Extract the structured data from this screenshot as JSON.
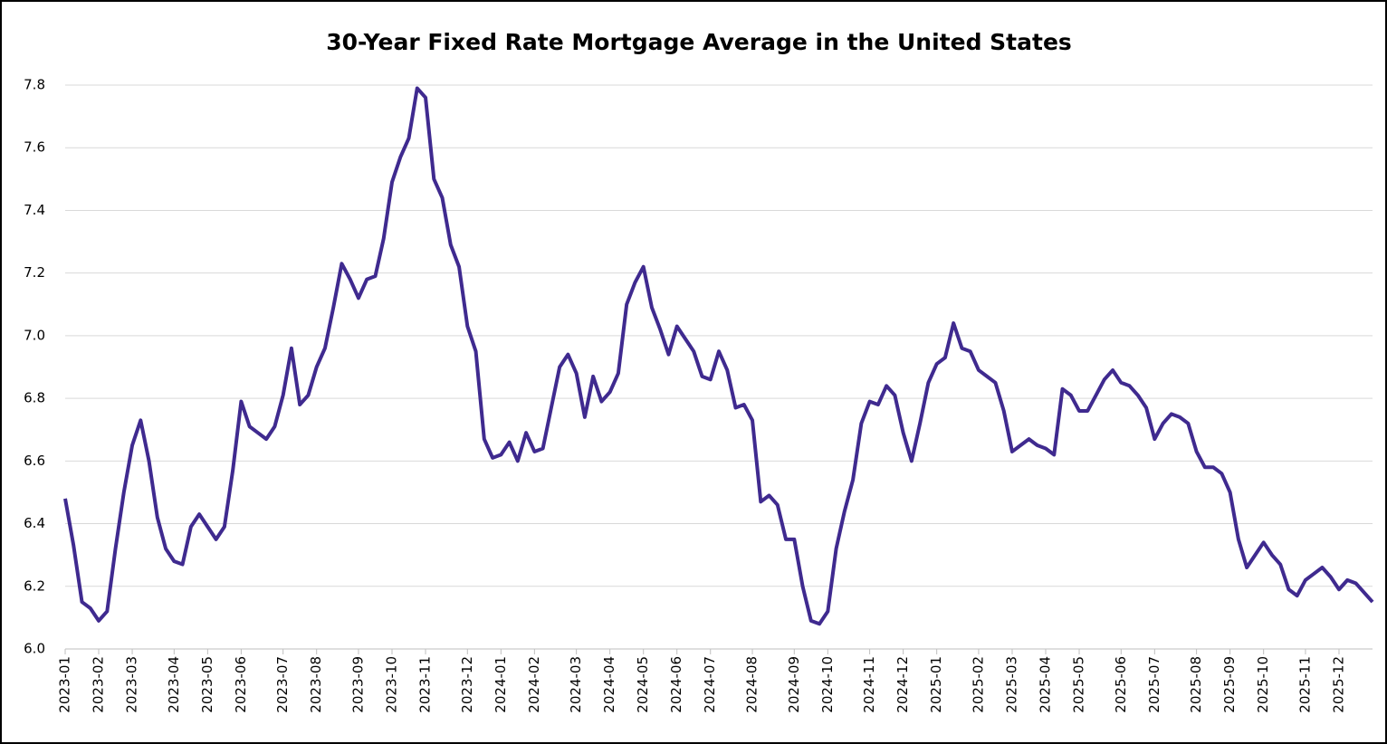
{
  "chart_data": {
    "type": "line",
    "title": "30-Year Fixed Rate Mortgage Average in the United States",
    "categories": [
      "2023-01",
      null,
      null,
      null,
      "2023-02",
      null,
      null,
      null,
      "2023-03",
      null,
      null,
      null,
      null,
      "2023-04",
      null,
      null,
      null,
      "2023-05",
      null,
      null,
      null,
      "2023-06",
      null,
      null,
      null,
      null,
      "2023-07",
      null,
      null,
      null,
      "2023-08",
      null,
      null,
      null,
      null,
      "2023-09",
      null,
      null,
      null,
      "2023-10",
      null,
      null,
      null,
      "2023-11",
      null,
      null,
      null,
      null,
      "2023-12",
      null,
      null,
      null,
      "2024-01",
      null,
      null,
      null,
      "2024-02",
      null,
      null,
      null,
      null,
      "2024-03",
      null,
      null,
      null,
      "2024-04",
      null,
      null,
      null,
      "2024-05",
      null,
      null,
      null,
      "2024-06",
      null,
      null,
      null,
      "2024-07",
      null,
      null,
      null,
      null,
      "2024-08",
      null,
      null,
      null,
      null,
      "2024-09",
      null,
      null,
      null,
      "2024-10",
      null,
      null,
      null,
      null,
      "2024-11",
      null,
      null,
      null,
      "2024-12",
      null,
      null,
      null,
      "2025-01",
      null,
      null,
      null,
      null,
      "2025-02",
      null,
      null,
      null,
      "2025-03",
      null,
      null,
      null,
      "2025-04",
      null,
      null,
      null,
      "2025-05",
      null,
      null,
      null,
      null,
      "2025-06",
      null,
      null,
      null,
      "2025-07",
      null,
      null,
      null,
      null,
      "2025-08",
      null,
      null,
      null,
      "2025-09",
      null,
      null,
      null,
      "2025-10",
      null,
      null,
      null,
      null,
      "2025-11",
      null,
      null,
      null,
      "2025-12",
      null,
      null,
      null,
      null
    ],
    "series": [
      {
        "name": "30-Year Fixed Rate Mortgage Average",
        "color": "#3f2a8f",
        "values": [
          6.48,
          6.33,
          6.15,
          6.13,
          6.09,
          6.12,
          6.32,
          6.5,
          6.65,
          6.73,
          6.6,
          6.42,
          6.32,
          6.28,
          6.27,
          6.39,
          6.43,
          6.39,
          6.35,
          6.39,
          6.57,
          6.79,
          6.71,
          6.69,
          6.67,
          6.71,
          6.81,
          6.96,
          6.78,
          6.81,
          6.9,
          6.96,
          7.09,
          7.23,
          7.18,
          7.12,
          7.18,
          7.19,
          7.31,
          7.49,
          7.57,
          7.63,
          7.79,
          7.76,
          7.5,
          7.44,
          7.29,
          7.22,
          7.03,
          6.95,
          6.67,
          6.61,
          6.62,
          6.66,
          6.6,
          6.69,
          6.63,
          6.64,
          6.77,
          6.9,
          6.94,
          6.88,
          6.74,
          6.87,
          6.79,
          6.82,
          6.88,
          7.1,
          7.17,
          7.22,
          7.09,
          7.02,
          6.94,
          7.03,
          6.99,
          6.95,
          6.87,
          6.86,
          6.95,
          6.89,
          6.77,
          6.78,
          6.73,
          6.47,
          6.49,
          6.46,
          6.35,
          6.35,
          6.2,
          6.09,
          6.08,
          6.12,
          6.32,
          6.44,
          6.54,
          6.72,
          6.79,
          6.78,
          6.84,
          6.81,
          6.69,
          6.6,
          6.72,
          6.85,
          6.91,
          6.93,
          7.04,
          6.96,
          6.95,
          6.89,
          6.87,
          6.85,
          6.76,
          6.63,
          6.65,
          6.67,
          6.65,
          6.64,
          6.62,
          6.83,
          6.81,
          6.76,
          6.76,
          6.81,
          6.86,
          6.89,
          6.85,
          6.84,
          6.81,
          6.77,
          6.67,
          6.72,
          6.75,
          6.74,
          6.72,
          6.63,
          6.58,
          6.58,
          6.56,
          6.5,
          6.35,
          6.26,
          6.3,
          6.34,
          6.3,
          6.27,
          6.19,
          6.17,
          6.22,
          6.24,
          6.26,
          6.23,
          6.19,
          6.22,
          6.21,
          6.18,
          6.15
        ]
      }
    ],
    "ylim": [
      6.0,
      7.8
    ],
    "yticks": [
      {
        "value": 6.0,
        "label": "6.0"
      },
      6.2,
      6.4,
      6.6,
      6.8,
      {
        "value": 7.0,
        "label": "7.0"
      },
      7.2,
      7.4,
      7.6,
      7.8
    ],
    "grid": true
  }
}
